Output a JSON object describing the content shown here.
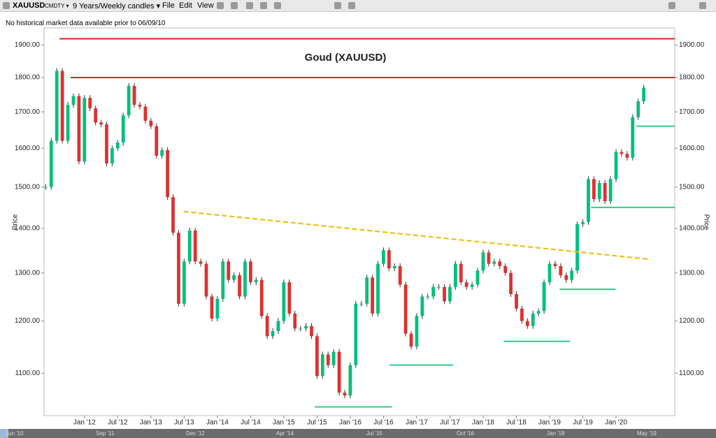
{
  "toolbar": {
    "symbol": "XAUUSD",
    "exchange": "CMDTY ▾",
    "period": "9 Years/Weekly candles ▾",
    "menus": [
      "File",
      "Edit",
      "View"
    ]
  },
  "info": "No historical market data available prior to 06/09/10",
  "chart_data": {
    "type": "candlestick",
    "title": "Goud (XAUUSD)",
    "ylabel": "Price",
    "log_scale": true,
    "up_color": "#00c07a",
    "down_color": "#e0302f",
    "closes": [
      1500,
      1620,
      1820,
      1620,
      1720,
      1745,
      1565,
      1740,
      1710,
      1670,
      1665,
      1560,
      1600,
      1615,
      1690,
      1775,
      1720,
      1715,
      1675,
      1660,
      1580,
      1595,
      1475,
      1390,
      1235,
      1325,
      1395,
      1325,
      1320,
      1250,
      1205,
      1245,
      1325,
      1285,
      1295,
      1250,
      1325,
      1280,
      1285,
      1210,
      1170,
      1180,
      1200,
      1280,
      1215,
      1185,
      1185,
      1190,
      1170,
      1095,
      1135,
      1115,
      1140,
      1065,
      1060,
      1115,
      1235,
      1235,
      1290,
      1215,
      1320,
      1350,
      1310,
      1315,
      1275,
      1175,
      1150,
      1210,
      1250,
      1250,
      1270,
      1270,
      1240,
      1270,
      1320,
      1280,
      1270,
      1275,
      1305,
      1345,
      1320,
      1325,
      1315,
      1300,
      1255,
      1225,
      1200,
      1190,
      1215,
      1220,
      1280,
      1320,
      1315,
      1295,
      1285,
      1305,
      1410,
      1415,
      1520,
      1470,
      1510,
      1465,
      1520,
      1590,
      1585,
      1575,
      1685,
      1730,
      1770
    ],
    "xlim": [
      -0.3,
      113.6
    ],
    "ylim": [
      1025,
      1955
    ],
    "xticks": [
      {
        "value": 7,
        "label": "Jan '12"
      },
      {
        "value": 13,
        "label": "Jul '12"
      },
      {
        "value": 19,
        "label": "Jan '13"
      },
      {
        "value": 25,
        "label": "Jul '13"
      },
      {
        "value": 31,
        "label": "Jan '14"
      },
      {
        "value": 37,
        "label": "Jul '14"
      },
      {
        "value": 43,
        "label": "Jan '15"
      },
      {
        "value": 49,
        "label": "Jul '15"
      },
      {
        "value": 55,
        "label": "Jan '16"
      },
      {
        "value": 61,
        "label": "Jul '16"
      },
      {
        "value": 67,
        "label": "Jan '17"
      },
      {
        "value": 73,
        "label": "Jul '17"
      },
      {
        "value": 79,
        "label": "Jan '18"
      },
      {
        "value": 85,
        "label": "Jul '18"
      },
      {
        "value": 91,
        "label": "Jan '19"
      },
      {
        "value": 97,
        "label": "Jul '19"
      },
      {
        "value": 103,
        "label": "Jan '20"
      }
    ],
    "yticks": [
      {
        "value": 1100,
        "label": "1100.00"
      },
      {
        "value": 1200,
        "label": "1200.00"
      },
      {
        "value": 1300,
        "label": "1300.00"
      },
      {
        "value": 1400,
        "label": "1400.00"
      },
      {
        "value": 1500,
        "label": "1500.00"
      },
      {
        "value": 1600,
        "label": "1600.00"
      },
      {
        "value": 1700,
        "label": "1700.00"
      },
      {
        "value": 1800,
        "label": "1800.00"
      },
      {
        "value": 1900,
        "label": "1900.00"
      }
    ],
    "levels": [
      {
        "value": 1920,
        "from": 2.5,
        "to": 113.6,
        "color": "#e02020"
      },
      {
        "value": 1800,
        "from": 4.5,
        "to": 113.6,
        "color": "#e02020"
      },
      {
        "value": 1660,
        "from": 106.7,
        "to": 113.6,
        "color": "#2ecc8a"
      },
      {
        "value": 1450,
        "from": 98.5,
        "to": 113.6,
        "color": "#2ecc8a"
      },
      {
        "value": 1265,
        "from": 92.8,
        "to": 102.9,
        "color": "#2ecc8a"
      },
      {
        "value": 1160,
        "from": 82.7,
        "to": 94.7,
        "color": "#2ecc8a"
      },
      {
        "value": 1115,
        "from": 62.1,
        "to": 73.6,
        "color": "#2ecc8a"
      },
      {
        "value": 1040,
        "from": 48.6,
        "to": 62.5,
        "color": "#2ecc8a"
      }
    ],
    "trend": {
      "x": [
        24.9,
        109
      ],
      "y": [
        1440,
        1330
      ],
      "color": "#f5b800"
    }
  },
  "navigator": [
    "Jun '10",
    "Sep '11",
    "Dec '12",
    "Apr '14",
    "Jul '15",
    "Oct '16",
    "Jan '18",
    "May '19"
  ]
}
